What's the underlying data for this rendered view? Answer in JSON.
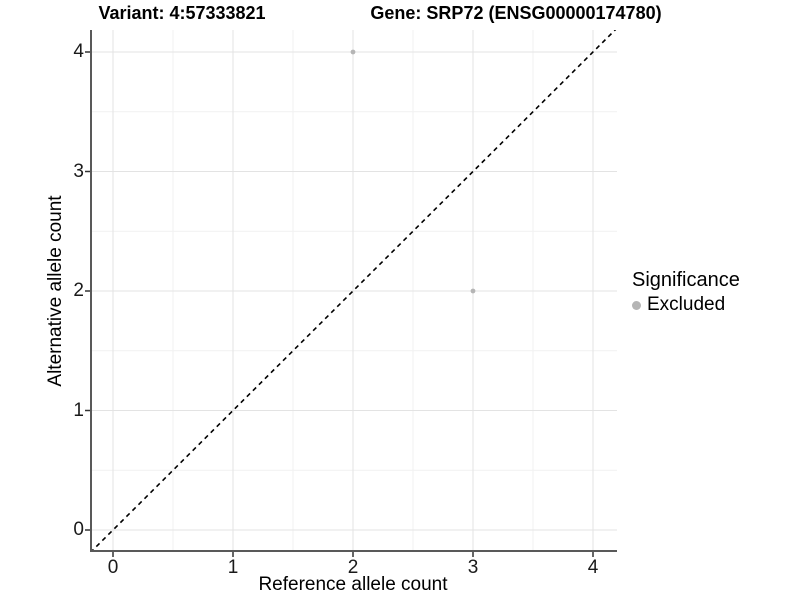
{
  "figure": {
    "title_left": "Variant: 4:57333821",
    "title_right": "Gene: SRP72 (ENSG00000174780)"
  },
  "chart_data": {
    "type": "scatter",
    "title": "Variant: 4:57333821 — Gene: SRP72 (ENSG00000174780)",
    "xlabel": "Reference allele count",
    "ylabel": "Alternative allele count",
    "x_ticks": [
      0,
      1,
      2,
      3,
      4
    ],
    "y_ticks": [
      0,
      1,
      2,
      3,
      4
    ],
    "xlim": [
      -0.19,
      4.2
    ],
    "ylim": [
      -0.18,
      4.18
    ],
    "grid": {
      "major": true,
      "minor": true
    },
    "series": [
      {
        "name": "Excluded",
        "points": [
          {
            "x": 2,
            "y": 4
          },
          {
            "x": 3,
            "y": 2
          }
        ]
      }
    ],
    "reference_line": {
      "slope": 1,
      "intercept": 0,
      "style": "dashed",
      "color": "#000000"
    },
    "legend": {
      "title": "Significance",
      "position": "right",
      "items": [
        {
          "label": "Excluded",
          "color": "#b5b5b5"
        }
      ]
    }
  },
  "colors": {
    "background": "#ffffff",
    "axis_line": "#595959",
    "tick_mark": "#333333",
    "grid_major": "#e3e3e3",
    "grid_minor": "#f1f1f1",
    "point": "#b5b5b5",
    "dashed_line": "#000000"
  }
}
